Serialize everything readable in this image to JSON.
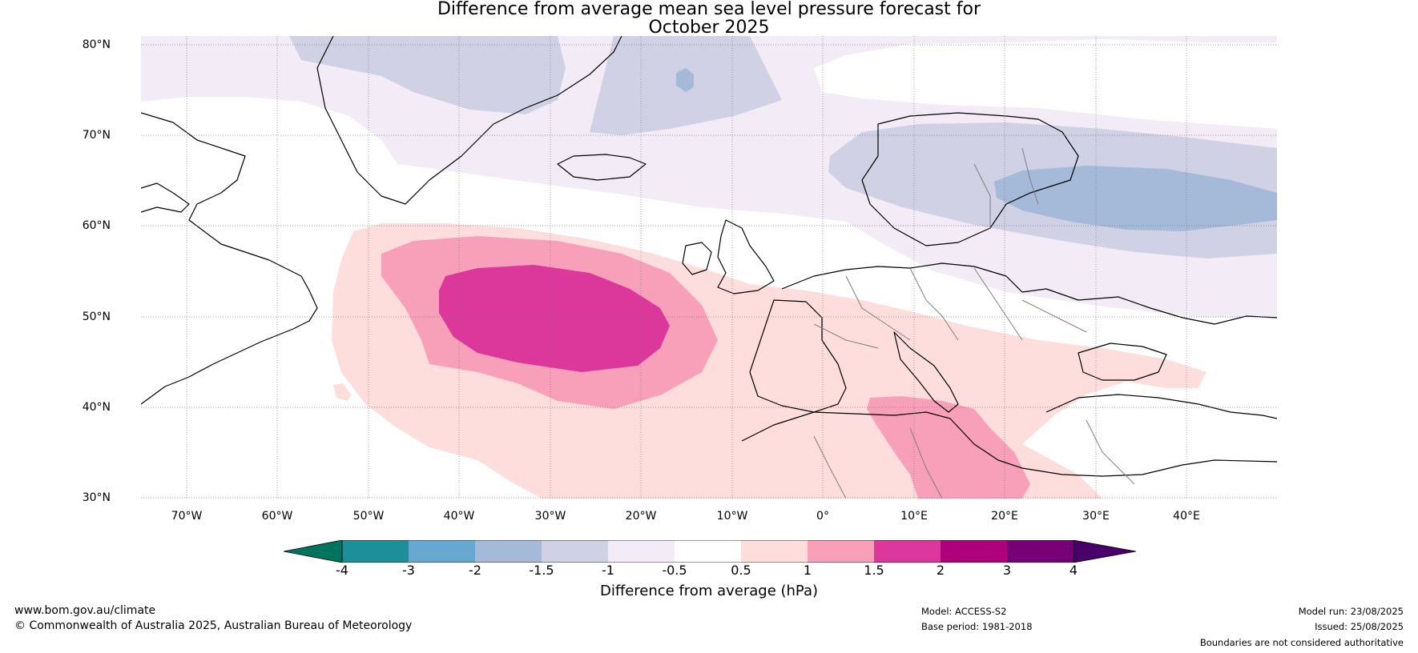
{
  "title": {
    "line1": "Difference from average mean sea level pressure forecast for",
    "line2": "October 2025"
  },
  "map": {
    "region": "North Atlantic and Europe",
    "lon_range": [
      -75,
      50
    ],
    "lat_range": [
      30,
      81
    ],
    "lat_ticks": [
      "80°N",
      "70°N",
      "60°N",
      "50°N",
      "40°N",
      "30°N"
    ],
    "lon_ticks": [
      "70°W",
      "60°W",
      "50°W",
      "40°W",
      "30°W",
      "20°W",
      "10°W",
      "0°",
      "10°E",
      "20°E",
      "30°E",
      "40°E"
    ],
    "features": [
      {
        "name": "Strong positive anomaly",
        "value_range": "1.5 to 2 hPa",
        "location": "central North Atlantic"
      },
      {
        "name": "Negative anomaly",
        "value_range": "-2 to -1.5 hPa",
        "location": "Scandinavia and Baltic"
      }
    ]
  },
  "colorbar": {
    "label": "Difference from average (hPa)",
    "tick_labels": [
      "-4",
      "-3",
      "-2",
      "-1.5",
      "-1",
      "-0.5",
      "0.5",
      "1",
      "1.5",
      "2",
      "3",
      "4"
    ],
    "colors": {
      "below_-4": "#00745e",
      "-4_-3": "#1c8f98",
      "-3_-2": "#66a8d2",
      "-2_-1.5": "#a5b9d8",
      "-1.5_-1": "#d0d1e5",
      "-1_-0.5": "#f3ebf5",
      "-0.5_0.5": "#ffffff",
      "0.5_1": "#fddedd",
      "1_1.5": "#f89fb9",
      "1.5_2": "#dc379b",
      "2_3": "#ad007d",
      "3_4": "#760177",
      "above_4": "#49006a"
    }
  },
  "footer": {
    "website": "www.bom.gov.au/climate",
    "copyright": "© Commonwealth of Australia 2025, Australian Bureau of Meteorology",
    "model": "Model: ACCESS-S2",
    "base_period": "Base period: 1981-2018",
    "model_run": "Model run: 23/08/2025",
    "issued": "Issued: 25/08/2025",
    "disclaimer": "Boundaries are not considered authoritative"
  }
}
